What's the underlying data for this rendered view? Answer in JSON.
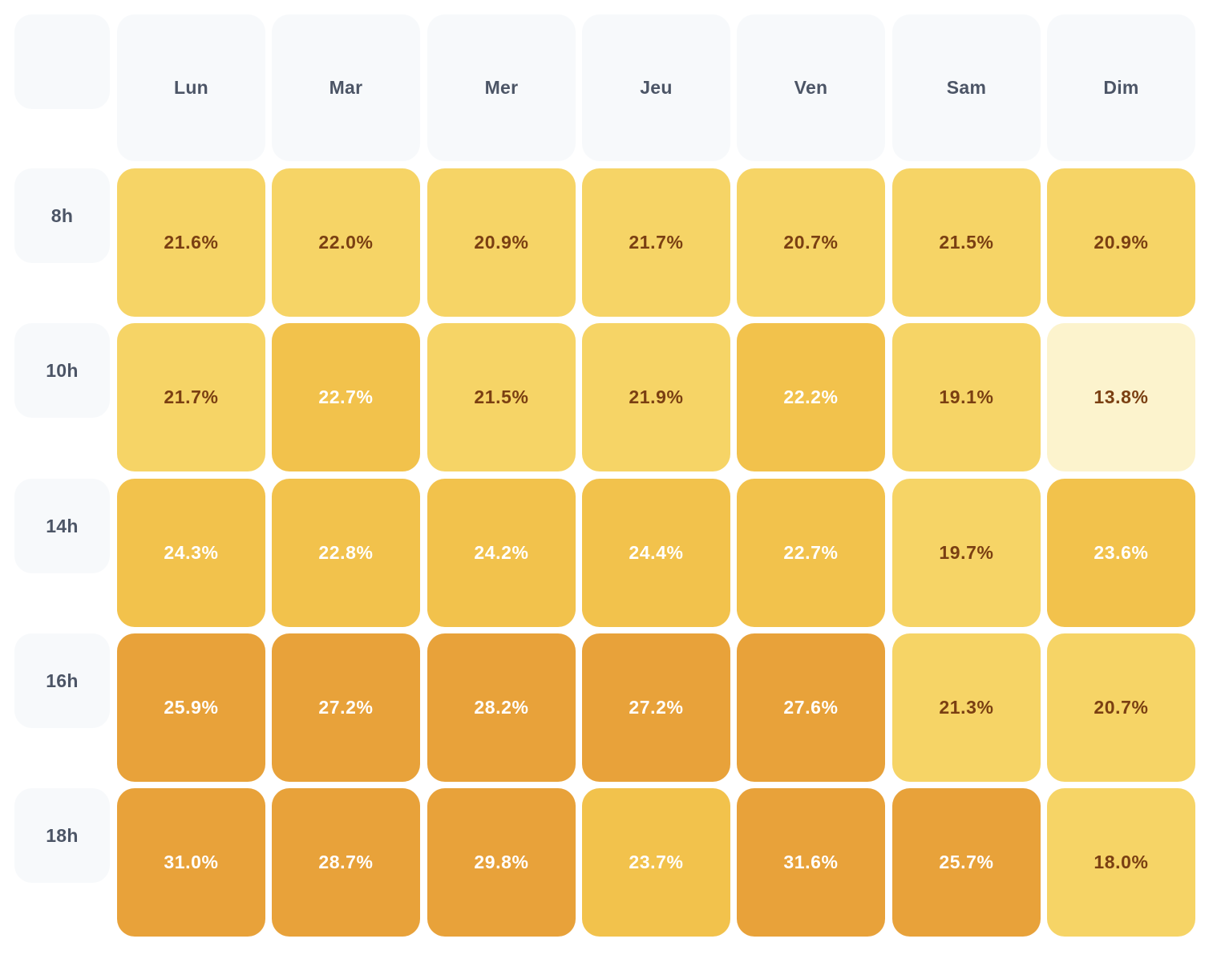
{
  "chart_data": {
    "type": "heatmap",
    "columns": [
      "Lun",
      "Mar",
      "Mer",
      "Jeu",
      "Ven",
      "Sam",
      "Dim"
    ],
    "rows": [
      "8h",
      "10h",
      "14h",
      "16h",
      "18h"
    ],
    "values": [
      [
        21.6,
        22.0,
        20.9,
        21.7,
        20.7,
        21.5,
        20.9
      ],
      [
        21.7,
        22.7,
        21.5,
        21.9,
        22.2,
        19.1,
        13.8
      ],
      [
        24.3,
        22.8,
        24.2,
        24.4,
        22.7,
        19.7,
        23.6
      ],
      [
        25.9,
        27.2,
        28.2,
        27.2,
        27.6,
        21.3,
        20.7
      ],
      [
        31.0,
        28.7,
        29.8,
        23.7,
        31.6,
        25.7,
        18.0
      ]
    ],
    "labels": [
      [
        "21.6%",
        "22.0%",
        "20.9%",
        "21.7%",
        "20.7%",
        "21.5%",
        "20.9%"
      ],
      [
        "21.7%",
        "22.7%",
        "21.5%",
        "21.9%",
        "22.2%",
        "19.1%",
        "13.8%"
      ],
      [
        "24.3%",
        "22.8%",
        "24.2%",
        "24.4%",
        "22.7%",
        "19.7%",
        "23.6%"
      ],
      [
        "25.9%",
        "27.2%",
        "28.2%",
        "27.2%",
        "27.6%",
        "21.3%",
        "20.7%"
      ],
      [
        "31.0%",
        "28.7%",
        "29.8%",
        "23.7%",
        "31.6%",
        "25.7%",
        "18.0%"
      ]
    ],
    "color_scale": [
      {
        "color": "#fcf3cd",
        "text_color": "#7a3f12"
      },
      {
        "color": "#f6d466",
        "text_color": "#7a3f12"
      },
      {
        "color": "#f2c24c",
        "text_color": "#ffffff"
      },
      {
        "color": "#e8a23a",
        "text_color": "#ffffff"
      }
    ],
    "levels": [
      [
        1,
        1,
        1,
        1,
        1,
        1,
        1
      ],
      [
        1,
        2,
        1,
        1,
        2,
        1,
        0
      ],
      [
        2,
        2,
        2,
        2,
        2,
        1,
        2
      ],
      [
        3,
        3,
        3,
        3,
        3,
        1,
        1
      ],
      [
        3,
        3,
        3,
        2,
        3,
        3,
        1
      ]
    ],
    "header_background": "#f7f9fb",
    "header_text_color": "#4c5566"
  }
}
